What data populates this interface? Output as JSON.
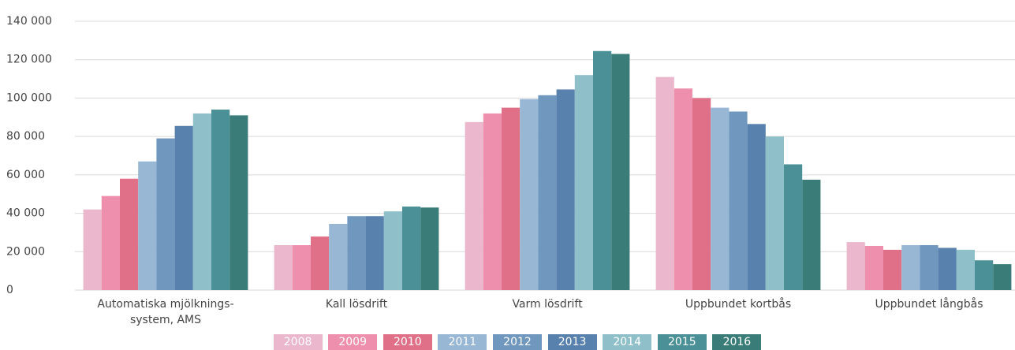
{
  "chart_data": {
    "type": "bar",
    "categories": [
      "Automatiska mjölknings-\nsystem, AMS",
      "Kall lösdrift",
      "Varm lösdrift",
      "Uppbundet kortbås",
      "Uppbundet långbås"
    ],
    "series": [
      {
        "name": "2008",
        "color": "#ebb7cc",
        "values": [
          42000,
          23400,
          87500,
          111000,
          25000
        ]
      },
      {
        "name": "2009",
        "color": "#ee8fae",
        "values": [
          49000,
          23400,
          92000,
          105000,
          23000
        ]
      },
      {
        "name": "2010",
        "color": "#e07087",
        "values": [
          58000,
          27900,
          95000,
          100000,
          21000
        ]
      },
      {
        "name": "2011",
        "color": "#97b7d4",
        "values": [
          67000,
          34500,
          99500,
          95000,
          23400
        ]
      },
      {
        "name": "2012",
        "color": "#7097bd",
        "values": [
          79000,
          38500,
          101500,
          93000,
          23400
        ]
      },
      {
        "name": "2013",
        "color": "#5881ae",
        "values": [
          85500,
          38500,
          104500,
          86500,
          22000
        ]
      },
      {
        "name": "2014",
        "color": "#8fc0c9",
        "values": [
          92000,
          41000,
          112000,
          80000,
          21000
        ]
      },
      {
        "name": "2015",
        "color": "#4a9096",
        "values": [
          94000,
          43500,
          124500,
          65500,
          15500
        ]
      },
      {
        "name": "2016",
        "color": "#3a7d78",
        "values": [
          91000,
          43000,
          123000,
          57500,
          13500
        ]
      }
    ],
    "ylim": [
      0,
      140000
    ],
    "yticks": [
      0,
      {
        "value": 20000,
        "label": "20 000"
      },
      {
        "value": 40000,
        "label": "40 000"
      },
      {
        "value": 60000,
        "label": "60 000"
      },
      {
        "value": 80000,
        "label": "80 000"
      },
      {
        "value": 100000,
        "label": "100 000"
      },
      {
        "value": 120000,
        "label": "120 000"
      },
      {
        "value": 140000,
        "label": "140 000"
      }
    ],
    "grid": true,
    "legend": "bottom"
  }
}
